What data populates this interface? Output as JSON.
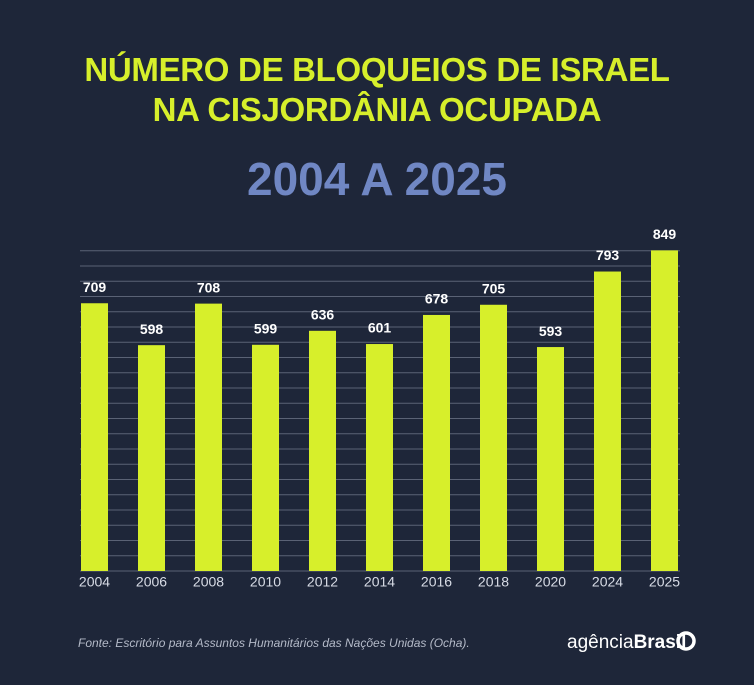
{
  "chart_data": {
    "type": "bar",
    "title": "NÚMERO DE BLOQUEIOS DE ISRAEL NA CISJORDÂNIA OCUPADA",
    "subtitle": "2004 A 2025",
    "categories": [
      "2004",
      "2006",
      "2008",
      "2010",
      "2012",
      "2014",
      "2016",
      "2018",
      "2020",
      "2024",
      "2025"
    ],
    "values": [
      709,
      598,
      708,
      599,
      636,
      601,
      678,
      705,
      593,
      793,
      849
    ],
    "color": "#d7ef2b",
    "ylim": [
      0,
      850
    ],
    "source": "Fonte: Escritório para Assuntos Humanitários das Nações Unidas (Ocha)."
  },
  "logo": {
    "light": "agência",
    "bold": "Brasil"
  }
}
